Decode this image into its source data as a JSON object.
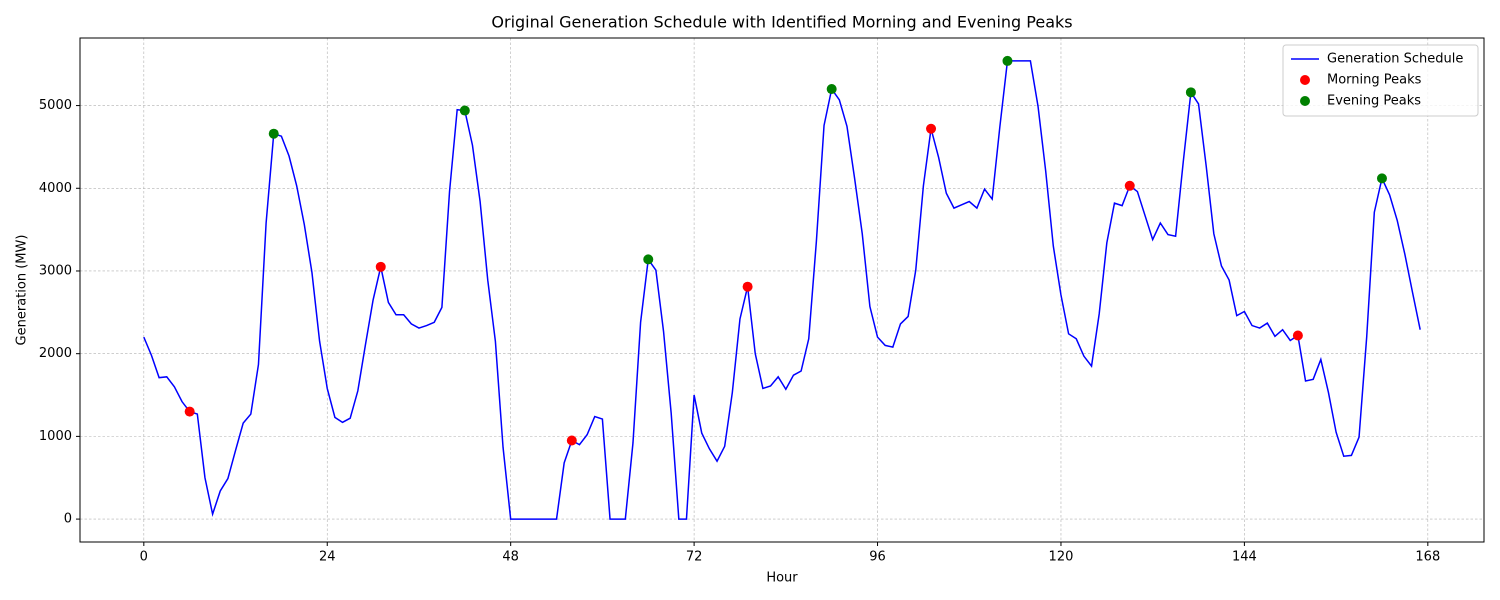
{
  "chart_data": {
    "type": "line",
    "title": "Original Generation Schedule with Identified Morning and Evening Peaks",
    "x_label": "Hour",
    "y_label": "Generation (MW)",
    "xlim": [
      -8.35,
      175.35
    ],
    "ylim": [
      -277,
      5817
    ],
    "xticks": [
      0,
      24,
      48,
      72,
      96,
      120,
      144,
      168
    ],
    "yticks": [
      0,
      1000,
      2000,
      3000,
      4000,
      5000
    ],
    "grid": true,
    "legend": "upper right",
    "series": [
      {
        "name": "Generation Schedule",
        "type": "line",
        "color": "#0000ff",
        "x": [
          0,
          1,
          2,
          3,
          4,
          5,
          6,
          7,
          8,
          9,
          10,
          11,
          12,
          13,
          14,
          15,
          16,
          17,
          18,
          19,
          20,
          21,
          22,
          23,
          24,
          25,
          26,
          27,
          28,
          29,
          30,
          31,
          32,
          33,
          34,
          35,
          36,
          37,
          38,
          39,
          40,
          41,
          42,
          43,
          44,
          45,
          46,
          47,
          48,
          49,
          50,
          51,
          52,
          53,
          54,
          55,
          56,
          57,
          58,
          59,
          60,
          61,
          62,
          63,
          64,
          65,
          66,
          67,
          68,
          69,
          70,
          71,
          72,
          73,
          74,
          75,
          76,
          77,
          78,
          79,
          80,
          81,
          82,
          83,
          84,
          85,
          86,
          87,
          88,
          89,
          90,
          91,
          92,
          93,
          94,
          95,
          96,
          97,
          98,
          99,
          100,
          101,
          102,
          103,
          104,
          105,
          106,
          107,
          108,
          109,
          110,
          111,
          112,
          113,
          114,
          115,
          116,
          117,
          118,
          119,
          120,
          121,
          122,
          123,
          124,
          125,
          126,
          127,
          128,
          129,
          130,
          131,
          132,
          133,
          134,
          135,
          136,
          137,
          138,
          139,
          140,
          141,
          142,
          143,
          144,
          145,
          146,
          147,
          148,
          149,
          150,
          151,
          152,
          153,
          154,
          155,
          156,
          157,
          158,
          159,
          160,
          161,
          162,
          163,
          164,
          165,
          166,
          167
        ],
        "values": [
          2200,
          1980,
          1710,
          1720,
          1600,
          1420,
          1300,
          1270,
          500,
          60,
          340,
          490,
          830,
          1160,
          1270,
          1870,
          3580,
          4660,
          4630,
          4390,
          4030,
          3560,
          2980,
          2150,
          1580,
          1230,
          1170,
          1220,
          1550,
          2110,
          2650,
          3050,
          2620,
          2470,
          2470,
          2360,
          2310,
          2340,
          2380,
          2560,
          3960,
          4950,
          4940,
          4520,
          3840,
          2890,
          2150,
          870,
          0,
          0,
          0,
          0,
          0,
          0,
          0,
          680,
          950,
          900,
          1020,
          1240,
          1210,
          0,
          0,
          0,
          920,
          2380,
          3140,
          3010,
          2270,
          1280,
          0,
          0,
          1500,
          1040,
          850,
          700,
          880,
          1530,
          2420,
          2810,
          2000,
          1580,
          1610,
          1720,
          1570,
          1740,
          1790,
          2180,
          3360,
          4760,
          5200,
          5070,
          4750,
          4120,
          3450,
          2570,
          2200,
          2100,
          2080,
          2360,
          2450,
          3010,
          4030,
          4720,
          4370,
          3940,
          3760,
          3800,
          3840,
          3760,
          3990,
          3870,
          4740,
          5540,
          5540,
          5540,
          5540,
          4990,
          4210,
          3300,
          2710,
          2240,
          2180,
          1970,
          1850,
          2480,
          3340,
          3820,
          3790,
          4030,
          3960,
          3670,
          3380,
          3580,
          3440,
          3420,
          4320,
          5160,
          5020,
          4270,
          3450,
          3060,
          2890,
          2460,
          2510,
          2340,
          2310,
          2370,
          2210,
          2290,
          2160,
          2220,
          1670,
          1690,
          1930,
          1530,
          1050,
          760,
          770,
          990,
          2200,
          3710,
          4120,
          3920,
          3610,
          3200,
          2740,
          2290
        ]
      },
      {
        "name": "Morning Peaks",
        "type": "scatter",
        "color": "#ff0000",
        "x": [
          6,
          31,
          56,
          79,
          103,
          129,
          151
        ],
        "values": [
          1300,
          3050,
          950,
          2810,
          4720,
          4030,
          2220
        ]
      },
      {
        "name": "Evening Peaks",
        "type": "scatter",
        "color": "#008000",
        "x": [
          17,
          42,
          66,
          90,
          113,
          137,
          162
        ],
        "values": [
          4660,
          4940,
          3140,
          5200,
          5540,
          5160,
          4120
        ]
      }
    ]
  }
}
